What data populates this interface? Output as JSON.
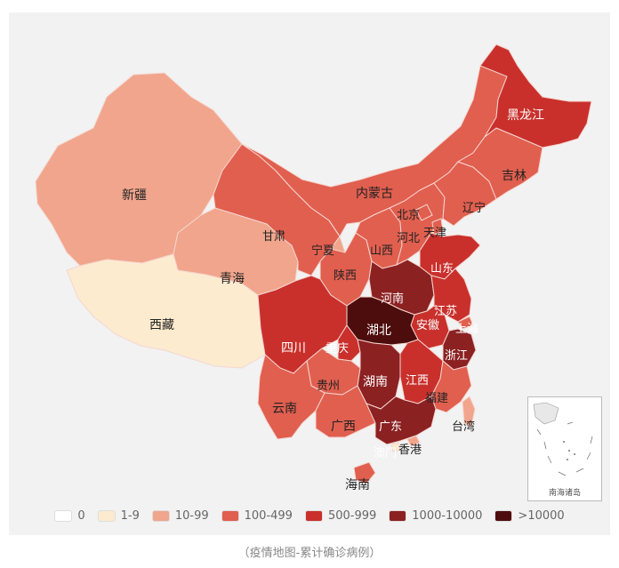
{
  "caption": "（疫情地图-累计确诊病例）",
  "inset_label": "南海诸岛",
  "colors": {
    "0": "#ffffff",
    "1-9": "#fdebcf",
    "10-99": "#f1a58c",
    "100-499": "#e15f4f",
    "500-999": "#c9302c",
    "1000-10000": "#8c2122",
    ">10000": "#4e0d0d",
    "border": "#f4d6d0",
    "water": "#f2f2f2"
  },
  "legend": [
    {
      "label": "0",
      "color": "#ffffff"
    },
    {
      "label": "1-9",
      "color": "#fdebcf"
    },
    {
      "label": "10-99",
      "color": "#f1a58c"
    },
    {
      "label": "100-499",
      "color": "#e15f4f"
    },
    {
      "label": "500-999",
      "color": "#c9302c"
    },
    {
      "label": "1000-10000",
      "color": "#8c2122"
    },
    {
      "label": ">10000",
      "color": "#4e0d0d"
    }
  ],
  "regions": [
    {
      "name": "新疆",
      "category": "10-99"
    },
    {
      "name": "西藏",
      "category": "1-9"
    },
    {
      "name": "青海",
      "category": "10-99"
    },
    {
      "name": "甘肃",
      "category": "100-499"
    },
    {
      "name": "内蒙古",
      "category": "100-499"
    },
    {
      "name": "宁夏",
      "category": "10-99"
    },
    {
      "name": "陕西",
      "category": "100-499"
    },
    {
      "name": "山西",
      "category": "100-499"
    },
    {
      "name": "河北",
      "category": "100-499"
    },
    {
      "name": "北京",
      "category": "100-499"
    },
    {
      "name": "天津",
      "category": "100-499"
    },
    {
      "name": "辽宁",
      "category": "100-499"
    },
    {
      "name": "吉林",
      "category": "100-499"
    },
    {
      "name": "黑龙江",
      "category": "500-999"
    },
    {
      "name": "山东",
      "category": "500-999"
    },
    {
      "name": "河南",
      "category": "1000-10000"
    },
    {
      "name": "江苏",
      "category": "500-999"
    },
    {
      "name": "安徽",
      "category": "500-999"
    },
    {
      "name": "上海",
      "category": "100-499"
    },
    {
      "name": "湖北",
      "category": ">10000"
    },
    {
      "name": "浙江",
      "category": "1000-10000"
    },
    {
      "name": "四川",
      "category": "500-999"
    },
    {
      "name": "重庆",
      "category": "500-999"
    },
    {
      "name": "湖南",
      "category": "1000-10000"
    },
    {
      "name": "江西",
      "category": "500-999"
    },
    {
      "name": "贵州",
      "category": "100-499"
    },
    {
      "name": "福建",
      "category": "100-499"
    },
    {
      "name": "云南",
      "category": "100-499"
    },
    {
      "name": "广西",
      "category": "100-499"
    },
    {
      "name": "广东",
      "category": "1000-10000"
    },
    {
      "name": "台湾",
      "category": "10-99"
    },
    {
      "name": "香港",
      "category": "10-99"
    },
    {
      "name": "澳门",
      "category": "1-9"
    },
    {
      "name": "海南",
      "category": "100-499"
    }
  ]
}
